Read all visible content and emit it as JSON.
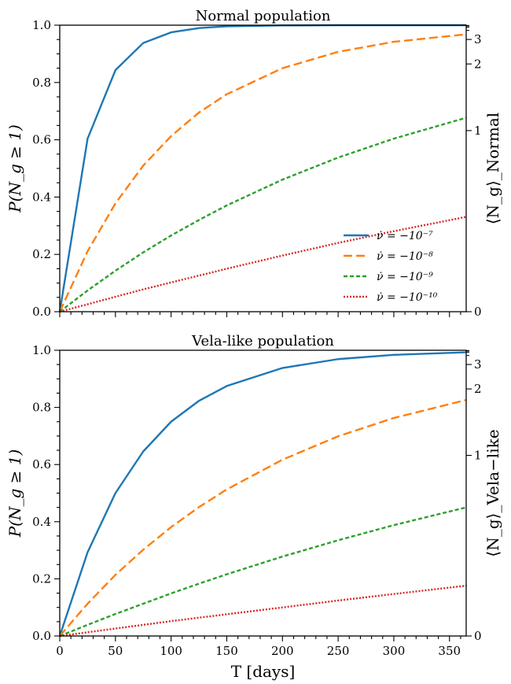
{
  "chart_data": [
    {
      "type": "line",
      "title": "Normal population",
      "xlabel": "",
      "ylabel": "P(N_g ≥ 1)",
      "ylabel_right": "⟨N_g⟩_Normal",
      "xlim": [
        0,
        365
      ],
      "ylim": [
        0,
        1.0
      ],
      "xticks": [
        "0",
        "50",
        "100",
        "150",
        "200",
        "250",
        "300",
        "350"
      ],
      "x_tick_labels_visible": false,
      "yticks": [
        "0.0",
        "0.2",
        "0.4",
        "0.6",
        "0.8",
        "1.0"
      ],
      "right_ticks": [
        "0",
        "1",
        "2",
        "3"
      ],
      "right_axis_scale": "P = 1 - exp(-N)",
      "legend": "lower-right",
      "grid": false,
      "series": [
        {
          "name": "ν̇ = −10⁻⁷",
          "color": "#1f77b4",
          "dash": "solid",
          "x": [
            0,
            25,
            50,
            75,
            100,
            125,
            150,
            200,
            250,
            300,
            365
          ],
          "y": [
            0,
            0.604,
            0.843,
            0.938,
            0.975,
            0.99,
            0.996,
            0.999,
            1.0,
            1.0,
            1.0
          ]
        },
        {
          "name": "ν̇ = −10⁻⁸",
          "color": "#ff7f0e",
          "dash": "dashed",
          "x": [
            0,
            25,
            50,
            75,
            100,
            125,
            150,
            200,
            250,
            300,
            365
          ],
          "y": [
            0,
            0.211,
            0.378,
            0.51,
            0.613,
            0.695,
            0.759,
            0.85,
            0.907,
            0.942,
            0.968
          ]
        },
        {
          "name": "ν̇ = −10⁻⁹",
          "color": "#2ca02c",
          "dash": "short-dashed",
          "x": [
            0,
            25,
            50,
            75,
            100,
            125,
            150,
            200,
            250,
            300,
            365
          ],
          "y": [
            0,
            0.074,
            0.143,
            0.207,
            0.266,
            0.32,
            0.371,
            0.461,
            0.538,
            0.604,
            0.677
          ]
        },
        {
          "name": "ν̇ = −10⁻¹⁰",
          "color": "#d62728",
          "dash": "dotted",
          "x": [
            0,
            25,
            50,
            75,
            100,
            125,
            150,
            200,
            250,
            300,
            365
          ],
          "y": [
            0,
            0.026,
            0.052,
            0.078,
            0.102,
            0.126,
            0.15,
            0.196,
            0.24,
            0.281,
            0.331
          ]
        }
      ]
    },
    {
      "type": "line",
      "title": "Vela-like population",
      "xlabel": "T [days]",
      "ylabel": "P(N_g ≥ 1)",
      "ylabel_right": "⟨N_g⟩_Vela−like",
      "xlim": [
        0,
        365
      ],
      "ylim": [
        0,
        1.0
      ],
      "xticks": [
        "0",
        "50",
        "100",
        "150",
        "200",
        "250",
        "300",
        "350"
      ],
      "x_tick_labels_visible": true,
      "yticks": [
        "0.0",
        "0.2",
        "0.4",
        "0.6",
        "0.8",
        "1.0"
      ],
      "right_ticks": [
        "0",
        "1",
        "2",
        "3"
      ],
      "right_axis_scale": "P = 1 - exp(-N)",
      "grid": false,
      "series": [
        {
          "color": "#1f77b4",
          "dash": "solid",
          "x": [
            0,
            25,
            50,
            75,
            100,
            125,
            150,
            200,
            250,
            300,
            365
          ],
          "y": [
            0,
            0.293,
            0.5,
            0.646,
            0.75,
            0.823,
            0.875,
            0.938,
            0.969,
            0.984,
            0.993
          ]
        },
        {
          "color": "#ff7f0e",
          "dash": "dashed",
          "x": [
            0,
            25,
            50,
            75,
            100,
            125,
            150,
            200,
            250,
            300,
            365
          ],
          "y": [
            0,
            0.113,
            0.214,
            0.302,
            0.381,
            0.451,
            0.513,
            0.617,
            0.699,
            0.763,
            0.826
          ]
        },
        {
          "color": "#2ca02c",
          "dash": "short-dashed",
          "x": [
            0,
            25,
            50,
            75,
            100,
            125,
            150,
            200,
            250,
            300,
            365
          ],
          "y": [
            0,
            0.039,
            0.077,
            0.113,
            0.149,
            0.183,
            0.216,
            0.278,
            0.335,
            0.388,
            0.45
          ]
        },
        {
          "color": "#d62728",
          "dash": "dotted",
          "x": [
            0,
            25,
            50,
            75,
            100,
            125,
            150,
            200,
            250,
            300,
            365
          ],
          "y": [
            0,
            0.013,
            0.026,
            0.039,
            0.052,
            0.064,
            0.076,
            0.1,
            0.124,
            0.147,
            0.176
          ]
        }
      ]
    }
  ]
}
